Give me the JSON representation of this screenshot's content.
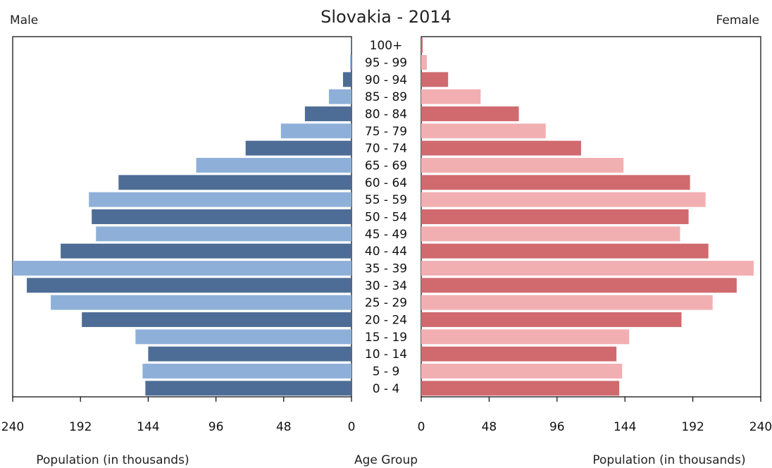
{
  "chart_data": {
    "type": "bar",
    "orientation": "horizontal",
    "layout": "population-pyramid",
    "title": "Slovakia - 2014",
    "left_label": "Male",
    "right_label": "Female",
    "center_axis_label": "Age Group",
    "left_axis_label": "Population (in thousands)",
    "right_axis_label": "Population (in thousands)",
    "xlim": [
      0,
      240
    ],
    "ticks": [
      0,
      48,
      96,
      144,
      192,
      240
    ],
    "categories": [
      "0 - 4",
      "5 - 9",
      "10 - 14",
      "15 - 19",
      "20 - 24",
      "25 - 29",
      "30 - 34",
      "35 - 39",
      "40 - 44",
      "45 - 49",
      "50 - 54",
      "55 - 59",
      "60 - 64",
      "65 - 69",
      "70 - 74",
      "75 - 79",
      "80 - 84",
      "85 - 89",
      "90 - 94",
      "95 - 99",
      "100+"
    ],
    "series": [
      {
        "name": "Male",
        "side": "left",
        "colors": [
          "#4d6d96",
          "#8eb0d8"
        ],
        "values": [
          146,
          148,
          144,
          153,
          191,
          213,
          230,
          240,
          206,
          181,
          184,
          186,
          165,
          110,
          75,
          50,
          33,
          16,
          6,
          1,
          0.3
        ]
      },
      {
        "name": "Female",
        "side": "right",
        "colors": [
          "#d06a6e",
          "#f2afb2"
        ],
        "values": [
          140,
          142,
          138,
          147,
          184,
          206,
          223,
          235,
          203,
          183,
          189,
          201,
          190,
          143,
          113,
          88,
          69,
          42,
          19,
          4,
          1
        ]
      }
    ],
    "grid": false,
    "legend": "none"
  }
}
